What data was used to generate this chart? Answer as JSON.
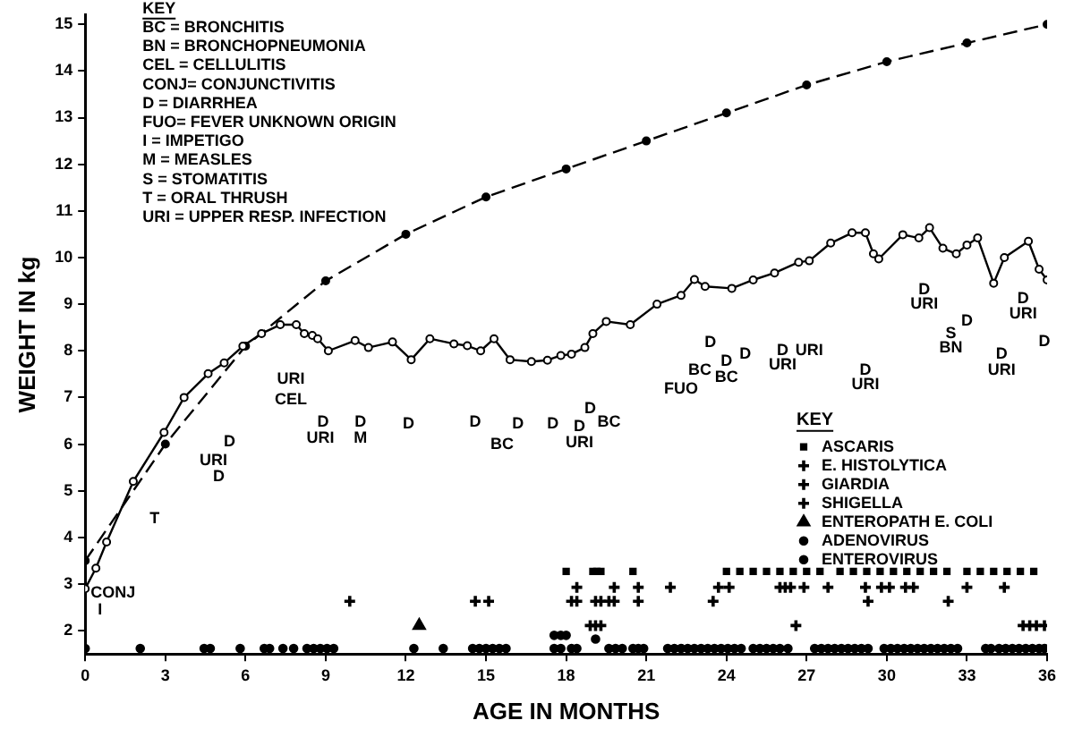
{
  "chart_data": {
    "type": "line",
    "xlabel": "AGE IN MONTHS",
    "ylabel": "WEIGHT IN kg",
    "xlim": [
      0,
      36
    ],
    "xticks": [
      0,
      3,
      6,
      9,
      12,
      15,
      18,
      21,
      24,
      27,
      30,
      33,
      36
    ],
    "ylim": [
      1.5,
      15.2
    ],
    "yticks": [
      2,
      3,
      4,
      5,
      6,
      7,
      8,
      9,
      10,
      11,
      12,
      13,
      14,
      15
    ],
    "grid": false,
    "legend": "right",
    "legend_title": "KEY",
    "series": [
      {
        "type": "line",
        "line_style": "dashed",
        "marker": "circle",
        "color": "#000000",
        "x": [
          0,
          3,
          6,
          9,
          12,
          15,
          18,
          21,
          24,
          27,
          30,
          33,
          36
        ],
        "values": [
          3.5,
          6.0,
          8.1,
          9.5,
          10.5,
          11.3,
          11.9,
          12.5,
          13.1,
          13.7,
          14.2,
          14.6,
          15.0
        ]
      },
      {
        "type": "line",
        "line_style": "solid",
        "marker": "circle",
        "color": "#000000",
        "x": [
          0,
          0.4,
          0.8,
          1.8,
          2.95,
          3.7,
          4.6,
          5.2,
          5.9,
          6.6,
          7.3,
          7.9,
          8.2,
          8.5,
          8.7,
          9.1,
          10.1,
          10.6,
          11.5,
          12.2,
          12.9,
          13.8,
          14.3,
          14.8,
          15.3,
          15.9,
          16.7,
          17.3,
          17.8,
          18.2,
          18.7,
          19.0,
          19.5,
          20.4,
          21.4,
          22.3,
          22.8,
          23.2,
          24.2,
          25.0,
          25.8,
          26.7,
          27.1,
          27.9,
          28.7,
          29.2,
          29.5,
          29.7,
          30.6,
          31.2,
          31.6,
          32.1,
          32.6,
          33.0,
          33.4,
          34.0,
          34.4,
          35.3,
          35.7,
          36
        ],
        "values": [
          2.9,
          3.34,
          3.9,
          5.2,
          6.25,
          7.0,
          7.51,
          7.74,
          8.1,
          8.37,
          8.56,
          8.56,
          8.37,
          8.33,
          8.26,
          8.0,
          8.22,
          8.07,
          8.19,
          7.81,
          8.26,
          8.15,
          8.11,
          8.0,
          8.26,
          7.81,
          7.77,
          7.8,
          7.9,
          7.93,
          8.07,
          8.37,
          8.63,
          8.56,
          9.0,
          9.19,
          9.53,
          9.38,
          9.34,
          9.52,
          9.67,
          9.9,
          9.93,
          10.31,
          10.53,
          10.53,
          10.08,
          9.97,
          10.49,
          10.42,
          10.64,
          10.2,
          10.08,
          10.27,
          10.42,
          9.45,
          10.0,
          10.35,
          9.75,
          9.52
        ]
      },
      {
        "type": "scatter",
        "name": "ASCARIS",
        "marker": "square",
        "color": "#000000",
        "x": [
          18.0,
          19.0,
          19.15,
          19.3,
          20.5,
          24,
          24.5,
          25,
          25.5,
          26,
          26.5,
          27,
          27.5,
          28.25,
          28.75,
          29.25,
          29.75,
          30.25,
          30.75,
          31.25,
          31.75,
          32.25,
          33,
          33.5,
          34,
          34.5,
          35,
          35.5
        ],
        "values": [
          3.27,
          3.27,
          3.27,
          3.27,
          3.27,
          3.27,
          3.27,
          3.27,
          3.27,
          3.27,
          3.27,
          3.27,
          3.27,
          3.27,
          3.27,
          3.27,
          3.27,
          3.27,
          3.27,
          3.27,
          3.27,
          3.27,
          3.27,
          3.27,
          3.27,
          3.27,
          3.27,
          3.27
        ]
      },
      {
        "type": "scatter",
        "name": "E. HISTOLYTICA",
        "marker": "cross",
        "color": "#000000",
        "x": [
          18.4,
          19.8,
          20.7,
          21.9,
          23.7,
          24.1,
          26.0,
          26.2,
          26.4,
          26.9,
          27.8,
          29.2,
          29.8,
          30.1,
          30.7,
          31.0,
          33.0,
          34.4
        ],
        "values": [
          2.93,
          2.93,
          2.93,
          2.93,
          2.93,
          2.93,
          2.93,
          2.93,
          2.93,
          2.93,
          2.93,
          2.93,
          2.93,
          2.93,
          2.93,
          2.93,
          2.93,
          2.93
        ]
      },
      {
        "type": "scatter",
        "name": "GIARDIA",
        "marker": "cross",
        "color": "#000000",
        "x": [
          9.9,
          14.6,
          15.1,
          18.2,
          18.4,
          19.1,
          19.3,
          19.6,
          19.8,
          20.7,
          23.5,
          29.3,
          32.3
        ],
        "values": [
          2.63,
          2.63,
          2.63,
          2.63,
          2.63,
          2.63,
          2.63,
          2.63,
          2.63,
          2.63,
          2.63,
          2.63,
          2.63
        ]
      },
      {
        "type": "scatter",
        "name": "SHIGELLA",
        "marker": "cross",
        "color": "#000000",
        "x": [
          18.9,
          19.1,
          19.3,
          26.6,
          35.1,
          35.35,
          35.6,
          35.9
        ],
        "values": [
          2.11,
          2.11,
          2.11,
          2.11,
          2.11,
          2.11,
          2.11,
          2.11
        ]
      },
      {
        "type": "scatter",
        "name": "ENTEROPATH E. COLI",
        "marker": "triangle",
        "color": "#000000",
        "x": [
          12.5
        ],
        "values": [
          2.11
        ]
      },
      {
        "type": "scatter",
        "name": "ADENOVIRUS",
        "marker": "circle",
        "color": "#000000",
        "x": [
          17.55,
          17.8,
          18.0,
          19.1
        ],
        "values": [
          1.9,
          1.9,
          1.9,
          1.82
        ]
      },
      {
        "type": "scatter",
        "name": "ENTEROVIRUS",
        "marker": "circle",
        "color": "#000000",
        "x": [
          0,
          2.06,
          4.45,
          4.68,
          5.8,
          6.7,
          6.9,
          7.4,
          7.8,
          8.3,
          8.55,
          8.8,
          9.05,
          9.3,
          12.3,
          13.4,
          14.5,
          14.75,
          15.0,
          15.25,
          15.5,
          15.75,
          17.55,
          17.8,
          18.2,
          18.4,
          19.6,
          19.85,
          20.1,
          20.5,
          20.7,
          20.9,
          21.8,
          22.05,
          22.3,
          22.55,
          22.8,
          23.05,
          23.3,
          23.55,
          23.8,
          24.05,
          24.3,
          24.55,
          25.0,
          25.25,
          25.5,
          25.75,
          26.0,
          26.3,
          27.3,
          27.55,
          27.8,
          28.05,
          28.3,
          28.55,
          28.8,
          29.05,
          29.3,
          29.9,
          30.15,
          30.4,
          30.65,
          30.9,
          31.15,
          31.4,
          31.65,
          31.9,
          32.15,
          32.4,
          32.65,
          33.7,
          33.9,
          34.2,
          34.45,
          34.7,
          34.95,
          35.2,
          35.45,
          35.7,
          35.9
        ],
        "values": [
          1.62,
          1.62,
          1.62,
          1.62,
          1.62,
          1.62,
          1.62,
          1.62,
          1.62,
          1.62,
          1.62,
          1.62,
          1.62,
          1.62,
          1.62,
          1.62,
          1.62,
          1.62,
          1.62,
          1.62,
          1.62,
          1.62,
          1.62,
          1.62,
          1.62,
          1.62,
          1.62,
          1.62,
          1.62,
          1.62,
          1.62,
          1.62,
          1.62,
          1.62,
          1.62,
          1.62,
          1.62,
          1.62,
          1.62,
          1.62,
          1.62,
          1.62,
          1.62,
          1.62,
          1.62,
          1.62,
          1.62,
          1.62,
          1.62,
          1.62,
          1.62,
          1.62,
          1.62,
          1.62,
          1.62,
          1.62,
          1.62,
          1.62,
          1.62,
          1.62,
          1.62,
          1.62,
          1.62,
          1.62,
          1.62,
          1.62,
          1.62,
          1.62,
          1.62,
          1.62,
          1.62,
          1.62,
          1.62,
          1.62,
          1.62,
          1.62,
          1.62,
          1.62,
          1.62,
          1.62,
          1.62
        ]
      }
    ],
    "annotations": [
      "KEY",
      "BC = BRONCHITIS",
      "BN = BRONCHOPNEUMONIA",
      "CEL = CELLULITIS",
      "CONJ= CONJUNCTIVITIS",
      "D = DIARRHEA",
      "FUO= FEVER UNKNOWN ORIGIN",
      "I = IMPETIGO",
      "M = MEASLES",
      "S = STOMATITIS",
      "T = ORAL THRUSH",
      "URI = UPPER RESP. INFECTION",
      "CONJ",
      "I",
      "T",
      "D",
      "URI",
      "D",
      "URI",
      "CEL",
      "D",
      "URI",
      "D",
      "M",
      "D",
      "D",
      "D",
      "BC",
      "D",
      "D",
      "URI",
      "D",
      "BC",
      "FUO",
      "BC",
      "D",
      "D",
      "BC",
      "D",
      "D",
      "URI",
      "URI",
      "D",
      "URI",
      "D",
      "URI",
      "D",
      "S",
      "BN",
      "D",
      "URI",
      "D",
      "URI",
      "D"
    ]
  }
}
